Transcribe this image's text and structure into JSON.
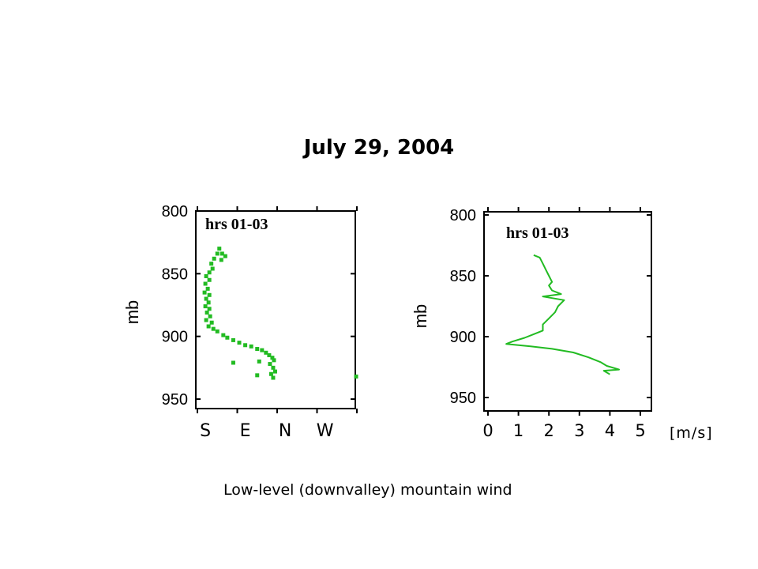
{
  "title": "July 29, 2004",
  "caption": "Low-level  (downvalley)  mountain wind",
  "unit_label": "[m/s]",
  "colors": {
    "series": "#22bb22",
    "axis": "#000000"
  },
  "chart_data": [
    {
      "type": "scatter",
      "title": "",
      "annotation": "hrs 01-03",
      "ylabel": "mb",
      "yticks": [
        800,
        850,
        900,
        950
      ],
      "ylim": [
        800,
        960
      ],
      "y_inverted": true,
      "x_categories": [
        "S",
        "E",
        "N",
        "W"
      ],
      "xlim": [
        0,
        4
      ],
      "grid": false,
      "series": [
        {
          "points": [
            [
              0.55,
              830
            ],
            [
              0.62,
              834
            ],
            [
              0.5,
              834
            ],
            [
              0.7,
              836
            ],
            [
              0.42,
              838
            ],
            [
              0.6,
              839
            ],
            [
              0.35,
              842
            ],
            [
              0.38,
              846
            ],
            [
              0.3,
              849
            ],
            [
              0.22,
              852
            ],
            [
              0.3,
              855
            ],
            [
              0.2,
              858
            ],
            [
              0.26,
              862
            ],
            [
              0.18,
              865
            ],
            [
              0.3,
              867
            ],
            [
              0.22,
              870
            ],
            [
              0.28,
              873
            ],
            [
              0.2,
              876
            ],
            [
              0.3,
              878
            ],
            [
              0.24,
              881
            ],
            [
              0.32,
              884
            ],
            [
              0.22,
              887
            ],
            [
              0.36,
              889
            ],
            [
              0.28,
              892
            ],
            [
              0.4,
              894
            ],
            [
              0.5,
              896
            ],
            [
              0.65,
              899
            ],
            [
              0.75,
              901
            ],
            [
              0.9,
              903
            ],
            [
              1.05,
              905
            ],
            [
              1.2,
              907
            ],
            [
              1.35,
              908
            ],
            [
              1.5,
              910
            ],
            [
              1.62,
              911
            ],
            [
              1.72,
              913
            ],
            [
              1.8,
              915
            ],
            [
              1.88,
              917
            ],
            [
              1.92,
              919
            ],
            [
              1.82,
              922
            ],
            [
              1.9,
              925
            ],
            [
              1.95,
              928
            ],
            [
              1.85,
              930
            ],
            [
              1.5,
              931
            ],
            [
              1.9,
              933
            ],
            [
              0.9,
              921
            ],
            [
              1.55,
              920
            ],
            [
              4.0,
              932
            ]
          ]
        }
      ]
    },
    {
      "type": "line",
      "title": "",
      "annotation": "hrs 01-03",
      "ylabel": "mb",
      "yticks": [
        800,
        850,
        900,
        950
      ],
      "ylim": [
        800,
        960
      ],
      "y_inverted": true,
      "xticks": [
        0,
        1,
        2,
        3,
        4,
        5
      ],
      "xlim": [
        0,
        5.1
      ],
      "grid": false,
      "series": [
        {
          "points": [
            [
              1.5,
              833
            ],
            [
              1.7,
              835
            ],
            [
              1.8,
              840
            ],
            [
              1.9,
              845
            ],
            [
              2.0,
              850
            ],
            [
              2.1,
              855
            ],
            [
              2.0,
              858
            ],
            [
              2.1,
              862
            ],
            [
              2.4,
              865
            ],
            [
              1.8,
              867
            ],
            [
              2.5,
              870
            ],
            [
              2.3,
              875
            ],
            [
              2.2,
              880
            ],
            [
              2.0,
              885
            ],
            [
              1.8,
              890
            ],
            [
              1.8,
              895
            ],
            [
              1.5,
              898
            ],
            [
              1.2,
              901
            ],
            [
              0.8,
              904
            ],
            [
              0.6,
              906
            ],
            [
              1.4,
              908
            ],
            [
              2.1,
              910
            ],
            [
              2.8,
              913
            ],
            [
              3.3,
              917
            ],
            [
              3.7,
              921
            ],
            [
              3.9,
              924
            ],
            [
              4.3,
              927
            ],
            [
              3.8,
              928
            ],
            [
              4.0,
              931
            ]
          ]
        }
      ]
    }
  ]
}
